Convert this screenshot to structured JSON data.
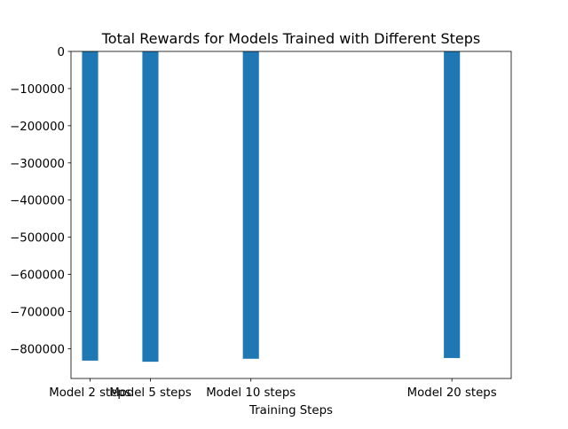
{
  "chart_data": {
    "type": "bar",
    "title": "Total Rewards for Models Trained with Different Steps",
    "xlabel": "Training Steps",
    "ylabel": "",
    "x": [
      2,
      5,
      10,
      20
    ],
    "categories": [
      "Model 2 steps",
      "Model 5 steps",
      "Model 10 steps",
      "Model 20 steps"
    ],
    "values": [
      -832000,
      -835000,
      -827000,
      -825000
    ],
    "ylim": [
      -880000,
      0
    ],
    "yticks": [
      0,
      -100000,
      -200000,
      -300000,
      -400000,
      -500000,
      -600000,
      -700000,
      -800000
    ],
    "ytick_labels": [
      "0",
      "−100000",
      "−200000",
      "−300000",
      "−400000",
      "−500000",
      "−600000",
      "−700000",
      "−800000"
    ],
    "xlim": [
      1.05,
      22.95
    ],
    "bar_width": 0.8,
    "grid": false,
    "bar_color": "#1f77b4"
  }
}
